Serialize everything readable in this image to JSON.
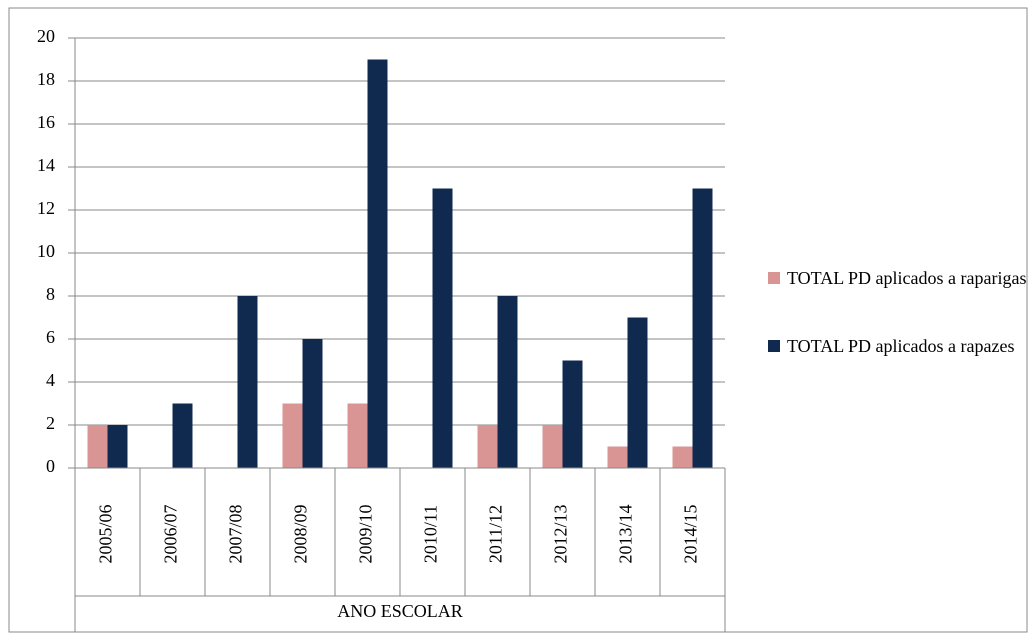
{
  "chart_data": {
    "type": "bar",
    "x_label": "ANO ESCOLAR",
    "categories": [
      "2005/06",
      "2006/07",
      "2007/08",
      "2008/09",
      "2009/10",
      "2010/11",
      "2011/12",
      "2012/13",
      "2013/14",
      "2014/15"
    ],
    "series": [
      {
        "name": "TOTAL PD aplicados a raparigas",
        "color": "#d99594",
        "values": [
          2,
          0,
          0,
          3,
          3,
          0,
          2,
          2,
          1,
          1
        ]
      },
      {
        "name": "TOTAL PD aplicados a rapazes",
        "color": "#10294f",
        "values": [
          2,
          3,
          8,
          6,
          19,
          13,
          8,
          5,
          7,
          13
        ]
      }
    ],
    "ylim": [
      0,
      20
    ],
    "yticks": [
      0,
      2,
      4,
      6,
      8,
      10,
      12,
      14,
      16,
      18,
      20
    ],
    "grid": true,
    "legend": "right"
  }
}
